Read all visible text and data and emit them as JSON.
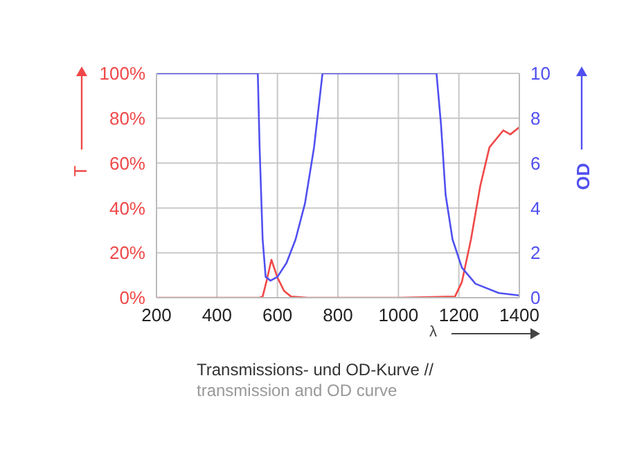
{
  "chart_data": {
    "type": "line",
    "xlabel": "λ",
    "ylabel": "T",
    "y2label": "OD",
    "annotations": [
      "Transmissions- und OD-Kurve //",
      "transmission and OD curve"
    ],
    "xlim": [
      200,
      1400
    ],
    "xticks": [
      200,
      400,
      600,
      800,
      1000,
      1200,
      1400
    ],
    "ylim": [
      0,
      100
    ],
    "yticks": [
      {
        "value": 0,
        "label": "0%"
      },
      {
        "value": 20,
        "label": "20%"
      },
      {
        "value": 40,
        "label": "40%"
      },
      {
        "value": 60,
        "label": "60%"
      },
      {
        "value": 80,
        "label": "80%"
      },
      {
        "value": 100,
        "label": "100%"
      }
    ],
    "y2lim": [
      0,
      10
    ],
    "y2ticks": [
      0,
      2,
      4,
      6,
      8,
      10
    ],
    "grid": true,
    "legend": false,
    "marker": "none",
    "line_style": "solid",
    "series": [
      {
        "color": "#f04848",
        "x": [
          200,
          540,
          551,
          565,
          580,
          600,
          622,
          645,
          700,
          1000,
          1187,
          1210,
          1240,
          1271,
          1301,
          1347,
          1370,
          1400
        ],
        "values": [
          0,
          0,
          0.5,
          8,
          16.9,
          9,
          3,
          0.5,
          0,
          0,
          0.5,
          7,
          26,
          50,
          67,
          74.6,
          72.8,
          76
        ]
      },
      {
        "color": "#5050f0",
        "axis": "y2",
        "x": [
          200,
          535,
          541,
          551,
          561,
          577,
          600,
          630,
          660,
          691,
          721,
          749,
          1000,
          1126,
          1141,
          1156,
          1179,
          1210,
          1255,
          1332,
          1400
        ],
        "values": [
          10,
          10,
          6.7,
          2.6,
          0.93,
          0.76,
          0.93,
          1.55,
          2.6,
          4.2,
          6.7,
          10,
          10,
          10,
          7.7,
          4.6,
          2.6,
          1.34,
          0.62,
          0.21,
          0.1
        ]
      }
    ]
  }
}
